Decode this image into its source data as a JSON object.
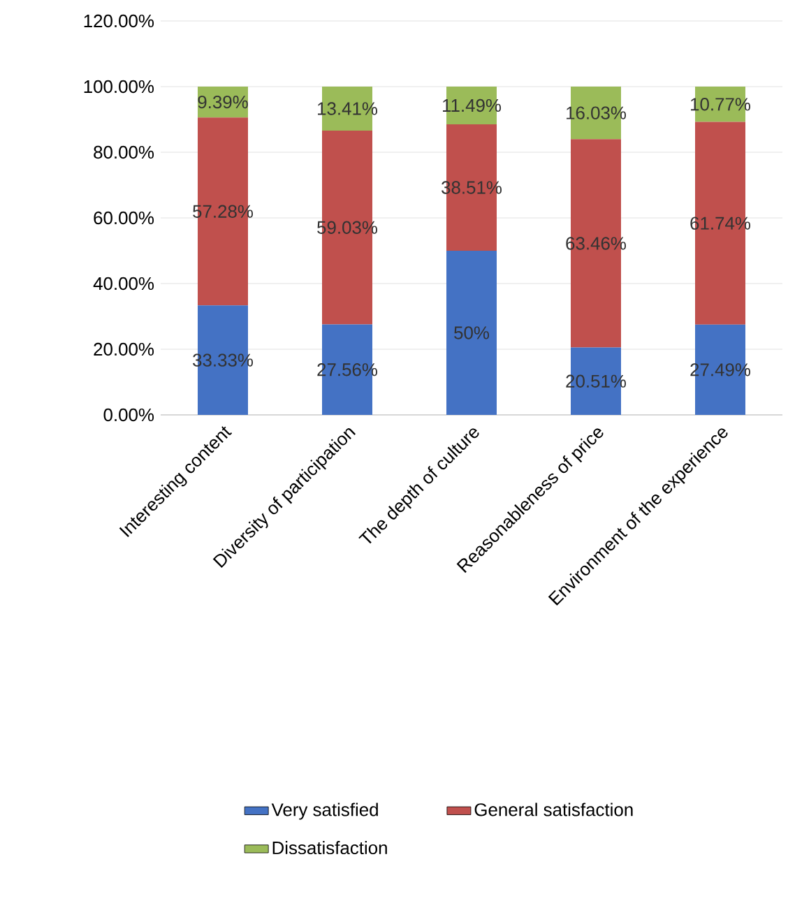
{
  "chart_data": {
    "type": "bar",
    "stacked": true,
    "categories": [
      "Interesting content",
      "Diversity of participation",
      "The depth of culture",
      "Reasonableness of price",
      "Environment of the experience"
    ],
    "series": [
      {
        "name": "Very satisfied",
        "color": "#4472c4",
        "values": [
          33.33,
          27.56,
          50,
          20.51,
          27.49
        ],
        "value_labels": [
          "33.33%",
          "27.56%",
          "50%",
          "20.51%",
          "27.49%"
        ]
      },
      {
        "name": "General satisfaction",
        "color": "#c0504d",
        "values": [
          57.28,
          59.03,
          38.51,
          63.46,
          61.74
        ],
        "value_labels": [
          "57.28%",
          "59.03%",
          "38.51%",
          "63.46%",
          "61.74%"
        ]
      },
      {
        "name": "Dissatisfaction",
        "color": "#9bbb59",
        "values": [
          9.39,
          13.41,
          11.49,
          16.03,
          10.77
        ],
        "value_labels": [
          "9.39%",
          "13.41%",
          "11.49%",
          "16.03%",
          "10.77%"
        ]
      }
    ],
    "ylim": [
      0,
      120
    ],
    "yticks": [
      {
        "value": 0,
        "label": "0.00%"
      },
      {
        "value": 20,
        "label": "20.00%"
      },
      {
        "value": 40,
        "label": "40.00%"
      },
      {
        "value": 60,
        "label": "60.00%"
      },
      {
        "value": 80,
        "label": "80.00%"
      },
      {
        "value": 100,
        "label": "100.00%"
      },
      {
        "value": 120,
        "label": "120.00%"
      }
    ],
    "grid": "y",
    "legend": "bottom"
  }
}
